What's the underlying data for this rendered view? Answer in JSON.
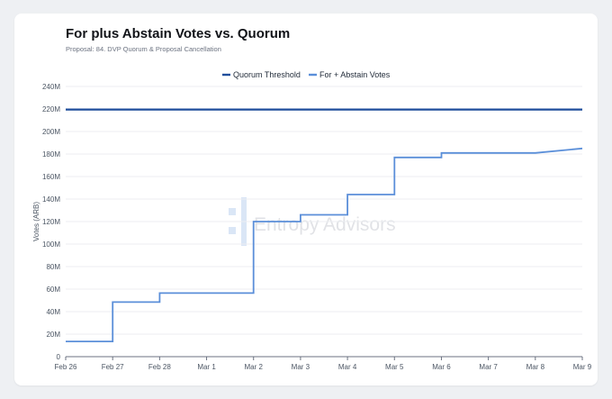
{
  "title": "For plus Abstain Votes vs. Quorum",
  "subtitle": "Proposal: 84. DVP Quorum & Proposal Cancellation",
  "watermark": "Entropy Advisors",
  "colors": {
    "quorum": "#1f4e9c",
    "votes": "#5b8fd9",
    "grid": "#eceef1",
    "axis": "#6b7280"
  },
  "chart_data": {
    "type": "line",
    "title": "For plus Abstain Votes vs. Quorum",
    "xlabel": "",
    "ylabel": "Votes (ARB)",
    "x_categories": [
      "Feb 26",
      "Feb 27",
      "Feb 28",
      "Mar 1",
      "Mar 2",
      "Mar 3",
      "Mar 4",
      "Mar 5",
      "Mar 6",
      "Mar 7",
      "Mar 8",
      "Mar 9"
    ],
    "y_ticks": [
      "0",
      "20M",
      "40M",
      "60M",
      "80M",
      "100M",
      "120M",
      "140M",
      "160M",
      "180M",
      "200M",
      "220M",
      "240M"
    ],
    "ylim": [
      0,
      240
    ],
    "y_unit": "M",
    "grid": true,
    "legend_position": "top-center",
    "series": [
      {
        "name": "Quorum Threshold",
        "color": "#1f4e9c",
        "style": "horizontal line",
        "points": [
          [
            0,
            219.5
          ],
          [
            11,
            219.5
          ]
        ]
      },
      {
        "name": "For + Abstain Votes",
        "color": "#5b8fd9",
        "style": "step line",
        "points": [
          [
            0,
            13.5
          ],
          [
            1,
            13.5
          ],
          [
            1,
            48.5
          ],
          [
            2,
            48.5
          ],
          [
            2,
            56.5
          ],
          [
            4,
            56.5
          ],
          [
            4,
            120
          ],
          [
            5,
            120
          ],
          [
            5,
            126
          ],
          [
            6,
            126
          ],
          [
            6,
            144
          ],
          [
            7,
            144
          ],
          [
            7,
            177
          ],
          [
            8,
            177
          ],
          [
            8,
            181
          ],
          [
            10,
            181
          ],
          [
            11,
            185
          ]
        ]
      }
    ]
  }
}
